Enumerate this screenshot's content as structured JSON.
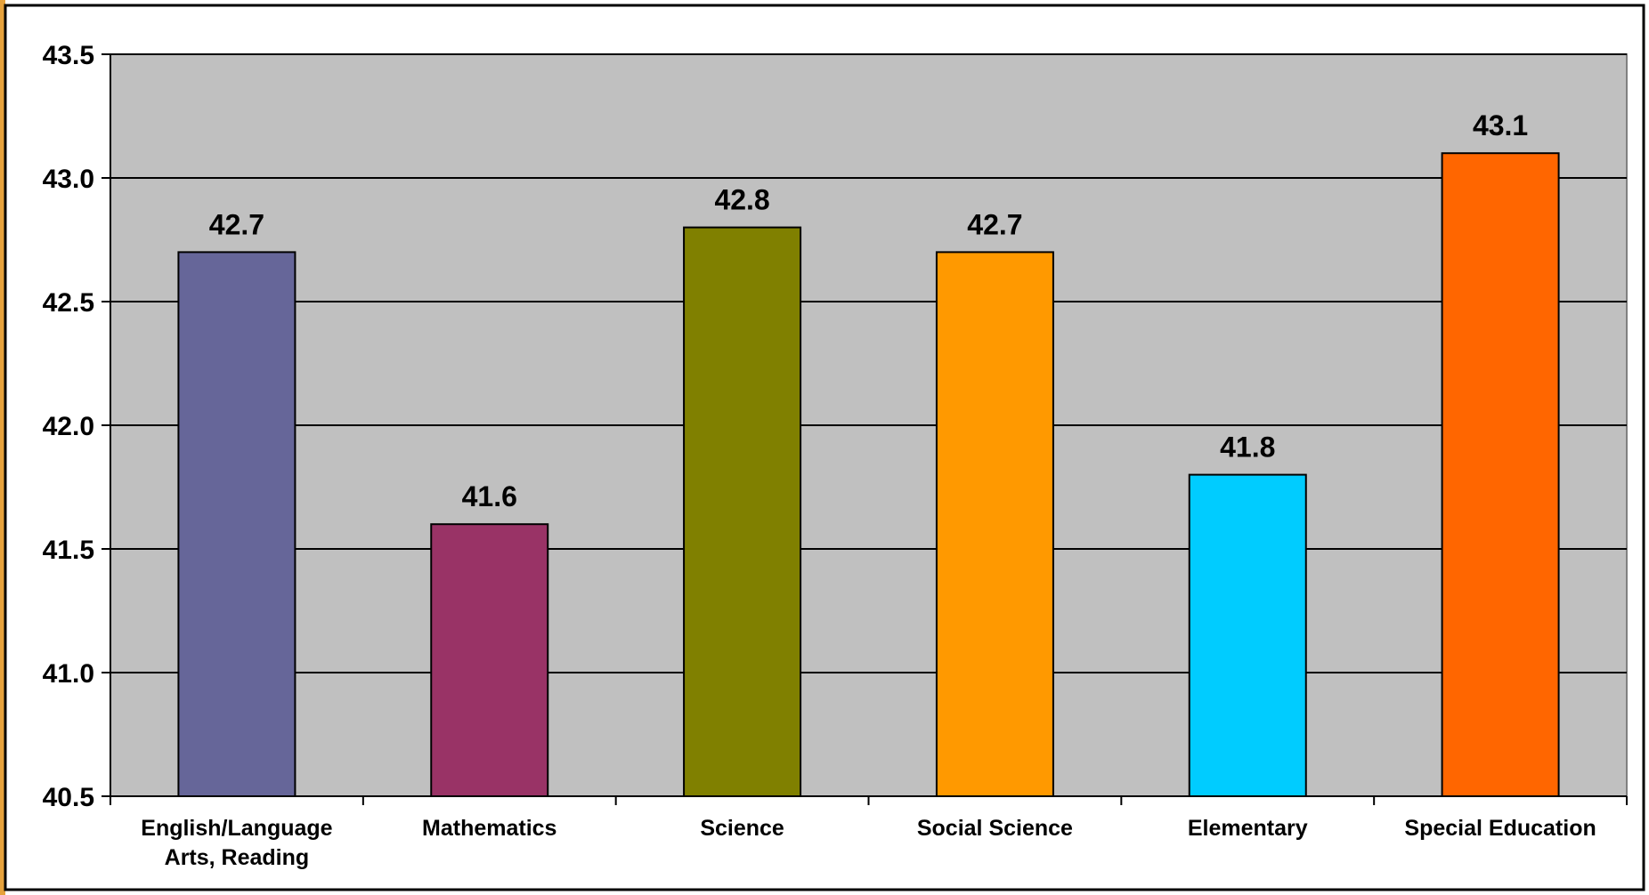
{
  "chart_data": {
    "type": "bar",
    "title": "",
    "xlabel": "",
    "ylabel": "",
    "categories": [
      [
        "English/Language",
        "Arts, Reading"
      ],
      [
        "Mathematics"
      ],
      [
        "Science"
      ],
      [
        "Social Science"
      ],
      [
        "Elementary"
      ],
      [
        "Special Education"
      ]
    ],
    "values": [
      42.7,
      41.6,
      42.8,
      42.7,
      41.8,
      43.1
    ],
    "value_labels": [
      "42.7",
      "41.6",
      "42.8",
      "42.7",
      "41.8",
      "43.1"
    ],
    "bar_colors": [
      "#666699",
      "#993366",
      "#808000",
      "#FF9900",
      "#00CCFF",
      "#FF6600"
    ],
    "ylim": [
      40.5,
      43.5
    ],
    "yticks": [
      40.5,
      41.0,
      41.5,
      42.0,
      42.5,
      43.0,
      43.5
    ],
    "ytick_labels": [
      "40.5",
      "41.0",
      "41.5",
      "42.0",
      "42.5",
      "43.0",
      "43.5"
    ],
    "grid": true,
    "legend": "none",
    "plot_background": "#C0C0C0",
    "frame_accent": "#E6A23C"
  }
}
